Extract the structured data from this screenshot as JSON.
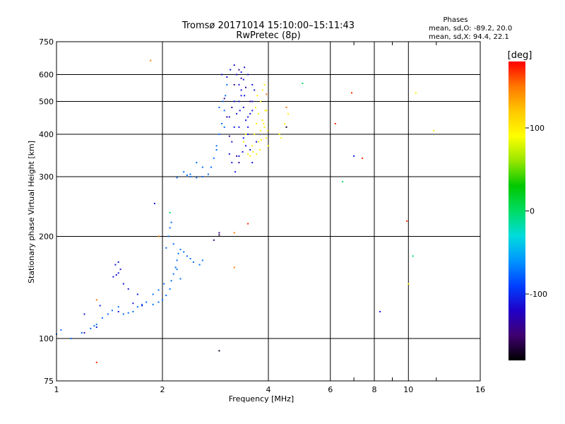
{
  "chart_data": {
    "type": "scatter",
    "title": "Tromsø 20171014 15:10:00–15:11:43",
    "subtitle": "RwPretec (8p)",
    "xlabel": "Frequency [MHz]",
    "ylabel": "Stationary phase Virtual Height [km]",
    "x_scale": "log2",
    "y_scale": "log",
    "xlim": [
      1,
      16
    ],
    "ylim": [
      75,
      750
    ],
    "x_ticks": [
      1,
      2,
      4,
      6,
      8,
      10,
      16
    ],
    "x_tick_labels": [
      "1",
      "2",
      "4",
      "6",
      "8",
      "10",
      "16"
    ],
    "x_grid": [
      1,
      2,
      4,
      6,
      8,
      10,
      16
    ],
    "x_minor": [
      7,
      9,
      12
    ],
    "y_ticks": [
      75,
      100,
      200,
      300,
      400,
      500,
      600,
      750
    ],
    "y_tick_labels": [
      "75",
      "100",
      "200",
      "300",
      "400",
      "500",
      "600",
      "750"
    ],
    "grid": true,
    "stats": {
      "heading": "Phases",
      "o_line": "mean, sd,O: -89.2, 20.0",
      "x_line": "mean, sd,X:  94.4, 22.1"
    },
    "colorbar": {
      "label": "[deg]",
      "range": [
        -180,
        180
      ],
      "ticks": [
        100,
        0,
        -100
      ],
      "tick_labels": [
        "100",
        "0",
        "-100"
      ],
      "colors": [
        "#000000",
        "#400070",
        "#2000c8",
        "#0040ff",
        "#0096ff",
        "#00dcdc",
        "#00dc64",
        "#00c800",
        "#96e600",
        "#ffff00",
        "#ffc800",
        "#ff7800",
        "#ff0000"
      ]
    },
    "series": [
      {
        "phase_deg": -75,
        "points": [
          [
            1.0,
            103
          ],
          [
            1.03,
            106
          ],
          [
            1.1,
            100
          ],
          [
            1.18,
            104
          ],
          [
            1.25,
            107
          ],
          [
            1.28,
            109
          ],
          [
            1.3,
            110
          ],
          [
            1.35,
            115
          ],
          [
            1.4,
            118
          ],
          [
            1.44,
            121
          ],
          [
            1.5,
            124
          ],
          [
            1.55,
            118
          ],
          [
            1.6,
            119
          ],
          [
            1.65,
            120
          ],
          [
            1.7,
            124
          ],
          [
            1.75,
            126
          ],
          [
            1.8,
            128
          ],
          [
            1.88,
            126
          ],
          [
            1.95,
            128
          ],
          [
            2.0,
            130
          ],
          [
            2.05,
            134
          ],
          [
            2.1,
            140
          ],
          [
            2.12,
            148
          ],
          [
            2.15,
            155
          ],
          [
            2.18,
            162
          ],
          [
            2.2,
            170
          ],
          [
            2.22,
            178
          ],
          [
            2.25,
            183
          ],
          [
            2.3,
            180
          ],
          [
            2.35,
            175
          ],
          [
            2.4,
            172
          ],
          [
            2.45,
            168
          ],
          [
            2.55,
            165
          ],
          [
            2.6,
            170
          ],
          [
            2.08,
            200
          ],
          [
            2.1,
            212
          ],
          [
            2.12,
            220
          ],
          [
            2.05,
            185
          ],
          [
            2.15,
            190
          ],
          [
            2.4,
            300
          ],
          [
            2.5,
            298
          ],
          [
            2.6,
            300
          ],
          [
            2.7,
            305
          ],
          [
            2.75,
            320
          ],
          [
            2.8,
            340
          ],
          [
            2.85,
            370
          ],
          [
            2.9,
            400
          ],
          [
            2.95,
            430
          ],
          [
            3.0,
            470
          ],
          [
            3.02,
            520
          ],
          [
            3.05,
            560
          ],
          [
            2.6,
            320
          ],
          [
            2.5,
            330
          ],
          [
            2.3,
            310
          ],
          [
            2.2,
            298
          ],
          [
            2.4,
            305
          ],
          [
            2.35,
            303
          ],
          [
            2.9,
            480
          ],
          [
            2.97,
            500
          ],
          [
            3.0,
            420
          ],
          [
            2.85,
            360
          ],
          [
            1.88,
            135
          ],
          [
            1.95,
            139
          ],
          [
            2.02,
            145
          ],
          [
            2.2,
            160
          ],
          [
            2.25,
            150
          ]
        ]
      },
      {
        "phase_deg": -110,
        "points": [
          [
            1.45,
            152
          ],
          [
            1.48,
            154
          ],
          [
            1.5,
            156
          ],
          [
            1.52,
            160
          ],
          [
            1.47,
            165
          ],
          [
            1.5,
            168
          ],
          [
            1.55,
            145
          ],
          [
            1.6,
            140
          ],
          [
            1.7,
            135
          ],
          [
            1.75,
            125
          ],
          [
            1.65,
            127
          ],
          [
            1.2,
            118
          ],
          [
            1.3,
            108
          ],
          [
            1.33,
            125
          ],
          [
            1.5,
            120
          ],
          [
            3.1,
            350
          ],
          [
            3.15,
            380
          ],
          [
            3.2,
            420
          ],
          [
            3.25,
            460
          ],
          [
            3.3,
            500
          ],
          [
            3.35,
            540
          ],
          [
            3.4,
            580
          ],
          [
            3.12,
            620
          ],
          [
            3.2,
            640
          ],
          [
            3.25,
            600
          ],
          [
            3.3,
            560
          ],
          [
            3.35,
            520
          ],
          [
            3.4,
            480
          ],
          [
            3.45,
            440
          ],
          [
            3.5,
            400
          ],
          [
            3.55,
            360
          ],
          [
            3.6,
            330
          ],
          [
            3.15,
            330
          ],
          [
            3.22,
            310
          ],
          [
            3.3,
            345
          ],
          [
            3.38,
            355
          ],
          [
            3.45,
            370
          ],
          [
            3.5,
            420
          ],
          [
            3.55,
            460
          ],
          [
            3.6,
            500
          ],
          [
            3.65,
            540
          ],
          [
            3.7,
            380
          ],
          [
            3.35,
            610
          ],
          [
            3.42,
            630
          ],
          [
            3.5,
            600
          ],
          [
            3.6,
            560
          ],
          [
            3.1,
            450
          ],
          [
            3.2,
            500
          ],
          [
            3.3,
            420
          ],
          [
            3.4,
            390
          ],
          [
            3.5,
            450
          ],
          [
            3.6,
            470
          ],
          [
            3.05,
            590
          ],
          [
            2.95,
            600
          ],
          [
            3.32,
            470
          ],
          [
            3.42,
            520
          ],
          [
            7.0,
            345
          ],
          [
            8.3,
            120
          ],
          [
            1.9,
            250
          ]
        ]
      },
      {
        "phase_deg": -140,
        "points": [
          [
            3.0,
            510
          ],
          [
            3.05,
            450
          ],
          [
            3.1,
            395
          ],
          [
            3.15,
            480
          ],
          [
            3.2,
            560
          ],
          [
            3.3,
            620
          ],
          [
            3.35,
            585
          ],
          [
            3.45,
            550
          ],
          [
            3.55,
            500
          ],
          [
            3.25,
            345
          ],
          [
            3.3,
            330
          ],
          [
            2.9,
            205
          ],
          [
            1.2,
            104
          ],
          [
            2.8,
            195
          ]
        ]
      },
      {
        "phase_deg": 100,
        "points": [
          [
            3.6,
            370
          ],
          [
            3.65,
            400
          ],
          [
            3.7,
            430
          ],
          [
            3.75,
            460
          ],
          [
            3.8,
            500
          ],
          [
            3.85,
            540
          ],
          [
            3.9,
            560
          ],
          [
            3.95,
            470
          ],
          [
            3.7,
            350
          ],
          [
            3.75,
            380
          ],
          [
            3.8,
            410
          ],
          [
            3.85,
            440
          ],
          [
            3.9,
            420
          ],
          [
            3.95,
            390
          ],
          [
            4.0,
            370
          ],
          [
            3.62,
            355
          ],
          [
            3.68,
            480
          ],
          [
            3.72,
            520
          ],
          [
            3.78,
            360
          ],
          [
            3.82,
            385
          ],
          [
            3.88,
            430
          ],
          [
            3.92,
            470
          ],
          [
            3.98,
            410
          ],
          [
            4.3,
            400
          ],
          [
            4.45,
            430
          ],
          [
            4.55,
            460
          ],
          [
            4.5,
            420
          ],
          [
            4.35,
            390
          ],
          [
            3.5,
            350
          ],
          [
            3.55,
            345
          ],
          [
            10.0,
            145
          ],
          [
            10.5,
            530
          ],
          [
            11.8,
            410
          ],
          [
            3.4,
            380
          ],
          [
            3.45,
            400
          ]
        ]
      },
      {
        "phase_deg": 150,
        "points": [
          [
            1.85,
            660
          ],
          [
            3.2,
            205
          ],
          [
            3.2,
            162
          ],
          [
            4.5,
            480
          ],
          [
            1.3,
            130
          ],
          [
            1.95,
            200
          ],
          [
            3.95,
            525
          ]
        ]
      },
      {
        "phase_deg": 170,
        "points": [
          [
            1.3,
            85
          ],
          [
            6.2,
            430
          ],
          [
            6.9,
            530
          ],
          [
            7.4,
            340
          ],
          [
            9.9,
            222
          ],
          [
            3.5,
            218
          ]
        ]
      },
      {
        "phase_deg": 0,
        "points": [
          [
            5.0,
            565
          ],
          [
            6.5,
            290
          ],
          [
            10.3,
            175
          ],
          [
            2.1,
            235
          ]
        ]
      },
      {
        "phase_deg": -170,
        "points": [
          [
            2.9,
            92
          ],
          [
            2.9,
            202
          ],
          [
            4.5,
            420
          ]
        ]
      }
    ]
  }
}
